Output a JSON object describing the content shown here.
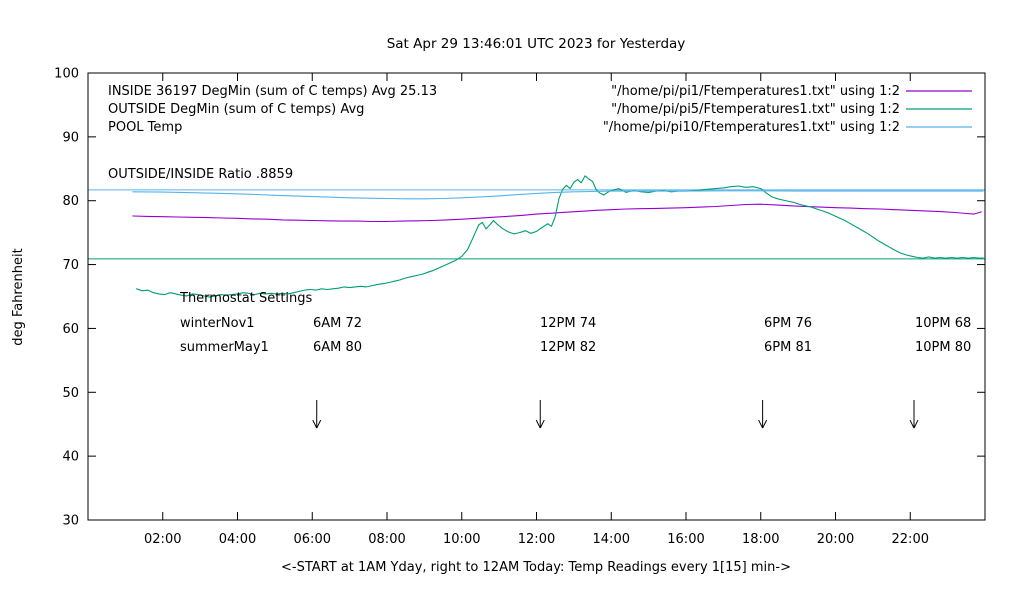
{
  "chart_data": {
    "type": "line",
    "title": "Sat Apr 29 13:46:01 UTC 2023 for Yesterday",
    "xlabel": "<-START at 1AM Yday, right to 12AM Today:  Temp Readings every 1[15] min->",
    "ylabel": "deg Fahrenheit",
    "xlim": [
      0,
      24
    ],
    "ylim": [
      30,
      100
    ],
    "grid": false,
    "legend_position": "top-inside",
    "x_tick_values": [
      2,
      4,
      6,
      8,
      10,
      12,
      14,
      16,
      18,
      20,
      22
    ],
    "x_tick_labels": [
      "02:00",
      "04:00",
      "06:00",
      "08:00",
      "10:00",
      "12:00",
      "14:00",
      "16:00",
      "18:00",
      "20:00",
      "22:00"
    ],
    "y_tick_values": [
      30,
      40,
      50,
      60,
      70,
      80,
      90,
      100
    ],
    "y_tick_labels": [
      "30",
      "40",
      "50",
      "60",
      "70",
      "80",
      "90",
      "100"
    ],
    "legend": [
      {
        "label": "INSIDE 36197 DegMin (sum of C temps) Avg 25.13",
        "file": "\"/home/pi/pi1/Ftemperatures1.txt\" using 1:2",
        "color": "#9400d3"
      },
      {
        "label": "OUTSIDE  DegMin (sum of C temps) Avg",
        "file": "\"/home/pi/pi5/Ftemperatures1.txt\" using 1:2",
        "color": "#009e73"
      },
      {
        "label": "POOL Temp",
        "file": "\"/home/pi/pi10/Ftemperatures1.txt\" using 1:2",
        "color": "#56b4e9"
      }
    ],
    "annotations": {
      "ratio": "OUTSIDE/INSIDE Ratio .8859",
      "thermostat_title": "Thermostat Settings",
      "thermostat_rows": [
        {
          "name": "winterNov1",
          "cols": [
            "6AM 72",
            "12PM 74",
            "6PM 76",
            "10PM 68"
          ]
        },
        {
          "name": "summerMay1",
          "cols": [
            "6AM 80",
            "12PM 82",
            "6PM 81",
            "10PM 80"
          ]
        }
      ]
    },
    "arrows": [
      {
        "t": 6.12,
        "y_from": 48.8,
        "y_to": 44.4
      },
      {
        "t": 12.1,
        "y_from": 48.8,
        "y_to": 44.4
      },
      {
        "t": 18.05,
        "y_from": 48.8,
        "y_to": 44.4
      },
      {
        "t": 22.1,
        "y_from": 48.8,
        "y_to": 44.4
      }
    ],
    "reference_lines": [
      {
        "name": "pool-setpoint-line",
        "value": 81.7,
        "color": "#56b4e9"
      },
      {
        "name": "outside-reference-line",
        "value": 70.9,
        "color": "#009e73"
      }
    ],
    "series": [
      {
        "name": "INSIDE",
        "color": "#9400d3",
        "points": [
          [
            1.2,
            77.6
          ],
          [
            1.6,
            77.55
          ],
          [
            2,
            77.5
          ],
          [
            2.4,
            77.45
          ],
          [
            2.8,
            77.4
          ],
          [
            3.2,
            77.35
          ],
          [
            3.6,
            77.3
          ],
          [
            4,
            77.25
          ],
          [
            4.4,
            77.15
          ],
          [
            4.8,
            77.1
          ],
          [
            5.2,
            77.0
          ],
          [
            5.6,
            76.95
          ],
          [
            6,
            76.9
          ],
          [
            6.4,
            76.85
          ],
          [
            6.8,
            76.8
          ],
          [
            7.2,
            76.8
          ],
          [
            7.6,
            76.75
          ],
          [
            8,
            76.75
          ],
          [
            8.4,
            76.8
          ],
          [
            8.8,
            76.85
          ],
          [
            9.2,
            76.9
          ],
          [
            9.6,
            77.0
          ],
          [
            10,
            77.1
          ],
          [
            10.4,
            77.25
          ],
          [
            10.8,
            77.4
          ],
          [
            11.2,
            77.55
          ],
          [
            11.6,
            77.7
          ],
          [
            12,
            77.9
          ],
          [
            12.4,
            78.05
          ],
          [
            12.8,
            78.2
          ],
          [
            13.2,
            78.35
          ],
          [
            13.6,
            78.5
          ],
          [
            14,
            78.6
          ],
          [
            14.4,
            78.7
          ],
          [
            14.8,
            78.75
          ],
          [
            15.2,
            78.8
          ],
          [
            15.6,
            78.85
          ],
          [
            16,
            78.9
          ],
          [
            16.4,
            79.0
          ],
          [
            16.8,
            79.1
          ],
          [
            17.2,
            79.25
          ],
          [
            17.6,
            79.4
          ],
          [
            18,
            79.45
          ],
          [
            18.4,
            79.35
          ],
          [
            18.8,
            79.2
          ],
          [
            19.2,
            79.1
          ],
          [
            19.6,
            79.0
          ],
          [
            20,
            78.9
          ],
          [
            20.4,
            78.85
          ],
          [
            20.8,
            78.75
          ],
          [
            21.2,
            78.7
          ],
          [
            21.6,
            78.6
          ],
          [
            22,
            78.5
          ],
          [
            22.4,
            78.4
          ],
          [
            22.8,
            78.3
          ],
          [
            23.2,
            78.15
          ],
          [
            23.5,
            78.0
          ],
          [
            23.7,
            77.9
          ],
          [
            23.9,
            78.25
          ]
        ]
      },
      {
        "name": "OUTSIDE",
        "color": "#009e73",
        "points": [
          [
            1.3,
            66.2
          ],
          [
            1.45,
            65.9
          ],
          [
            1.6,
            66.0
          ],
          [
            1.75,
            65.6
          ],
          [
            1.9,
            65.4
          ],
          [
            2.05,
            65.3
          ],
          [
            2.2,
            65.6
          ],
          [
            2.35,
            65.4
          ],
          [
            2.5,
            65.2
          ],
          [
            2.65,
            65.1
          ],
          [
            2.8,
            65.4
          ],
          [
            2.95,
            65.3
          ],
          [
            3.1,
            65.1
          ],
          [
            3.25,
            64.9
          ],
          [
            3.4,
            65.1
          ],
          [
            3.55,
            65.3
          ],
          [
            3.7,
            65.2
          ],
          [
            3.85,
            65.3
          ],
          [
            4,
            65.4
          ],
          [
            4.15,
            65.6
          ],
          [
            4.3,
            65.5
          ],
          [
            4.45,
            65.3
          ],
          [
            4.6,
            65.5
          ],
          [
            4.75,
            65.4
          ],
          [
            4.9,
            65.5
          ],
          [
            5.05,
            65.4
          ],
          [
            5.2,
            65.5
          ],
          [
            5.35,
            65.4
          ],
          [
            5.5,
            65.6
          ],
          [
            5.65,
            65.8
          ],
          [
            5.8,
            66.0
          ],
          [
            5.95,
            66.1
          ],
          [
            6.1,
            66.0
          ],
          [
            6.25,
            66.2
          ],
          [
            6.4,
            66.1
          ],
          [
            6.55,
            66.2
          ],
          [
            6.7,
            66.3
          ],
          [
            6.85,
            66.5
          ],
          [
            7,
            66.4
          ],
          [
            7.15,
            66.5
          ],
          [
            7.3,
            66.6
          ],
          [
            7.45,
            66.5
          ],
          [
            7.6,
            66.7
          ],
          [
            7.75,
            66.9
          ],
          [
            7.9,
            67.0
          ],
          [
            8.05,
            67.2
          ],
          [
            8.2,
            67.4
          ],
          [
            8.35,
            67.6
          ],
          [
            8.5,
            67.9
          ],
          [
            8.65,
            68.1
          ],
          [
            8.8,
            68.3
          ],
          [
            8.95,
            68.5
          ],
          [
            9.1,
            68.8
          ],
          [
            9.25,
            69.1
          ],
          [
            9.4,
            69.5
          ],
          [
            9.55,
            69.9
          ],
          [
            9.7,
            70.3
          ],
          [
            9.85,
            70.7
          ],
          [
            10,
            71.3
          ],
          [
            10.15,
            72.3
          ],
          [
            10.3,
            74.2
          ],
          [
            10.45,
            76.2
          ],
          [
            10.55,
            76.6
          ],
          [
            10.65,
            75.6
          ],
          [
            10.75,
            76.2
          ],
          [
            10.85,
            76.9
          ],
          [
            10.95,
            76.3
          ],
          [
            11.1,
            75.6
          ],
          [
            11.25,
            75.1
          ],
          [
            11.4,
            74.8
          ],
          [
            11.55,
            75.0
          ],
          [
            11.7,
            75.3
          ],
          [
            11.85,
            74.9
          ],
          [
            12,
            75.2
          ],
          [
            12.15,
            75.8
          ],
          [
            12.3,
            76.4
          ],
          [
            12.4,
            76.0
          ],
          [
            12.5,
            77.5
          ],
          [
            12.6,
            80.3
          ],
          [
            12.7,
            81.8
          ],
          [
            12.8,
            82.4
          ],
          [
            12.9,
            81.9
          ],
          [
            13,
            82.9
          ],
          [
            13.1,
            83.3
          ],
          [
            13.2,
            82.8
          ],
          [
            13.3,
            83.9
          ],
          [
            13.4,
            83.4
          ],
          [
            13.5,
            83.0
          ],
          [
            13.6,
            81.7
          ],
          [
            13.7,
            81.2
          ],
          [
            13.8,
            80.9
          ],
          [
            13.9,
            81.3
          ],
          [
            14,
            81.6
          ],
          [
            14.2,
            81.9
          ],
          [
            14.4,
            81.3
          ],
          [
            14.6,
            81.6
          ],
          [
            14.8,
            81.4
          ],
          [
            15,
            81.3
          ],
          [
            15.2,
            81.5
          ],
          [
            15.4,
            81.6
          ],
          [
            15.6,
            81.4
          ],
          [
            15.8,
            81.5
          ],
          [
            16,
            81.5
          ],
          [
            16.2,
            81.6
          ],
          [
            16.4,
            81.7
          ],
          [
            16.6,
            81.8
          ],
          [
            16.8,
            81.9
          ],
          [
            17,
            82.0
          ],
          [
            17.2,
            82.2
          ],
          [
            17.4,
            82.3
          ],
          [
            17.6,
            82.1
          ],
          [
            17.8,
            82.2
          ],
          [
            18,
            81.9
          ],
          [
            18.15,
            81.2
          ],
          [
            18.3,
            80.6
          ],
          [
            18.45,
            80.3
          ],
          [
            18.6,
            80.1
          ],
          [
            18.75,
            79.9
          ],
          [
            18.9,
            79.7
          ],
          [
            19.05,
            79.4
          ],
          [
            19.2,
            79.2
          ],
          [
            19.35,
            79.0
          ],
          [
            19.5,
            78.7
          ],
          [
            19.65,
            78.4
          ],
          [
            19.8,
            78.1
          ],
          [
            19.95,
            77.7
          ],
          [
            20.1,
            77.3
          ],
          [
            20.25,
            76.9
          ],
          [
            20.4,
            76.4
          ],
          [
            20.55,
            75.9
          ],
          [
            20.7,
            75.4
          ],
          [
            20.85,
            74.9
          ],
          [
            21,
            74.3
          ],
          [
            21.15,
            73.7
          ],
          [
            21.3,
            73.2
          ],
          [
            21.45,
            72.7
          ],
          [
            21.6,
            72.2
          ],
          [
            21.75,
            71.8
          ],
          [
            21.9,
            71.5
          ],
          [
            22.05,
            71.3
          ],
          [
            22.2,
            71.1
          ],
          [
            22.35,
            71.0
          ],
          [
            22.5,
            71.2
          ],
          [
            22.65,
            71.0
          ],
          [
            22.8,
            71.1
          ],
          [
            22.95,
            71.0
          ],
          [
            23.1,
            71.1
          ],
          [
            23.25,
            71.0
          ],
          [
            23.4,
            71.1
          ],
          [
            23.55,
            71.0
          ],
          [
            23.7,
            71.1
          ],
          [
            23.85,
            71.0
          ],
          [
            23.95,
            71.05
          ]
        ]
      },
      {
        "name": "POOL",
        "color": "#56b4e9",
        "points": [
          [
            1.2,
            81.4
          ],
          [
            2,
            81.35
          ],
          [
            2.8,
            81.25
          ],
          [
            3.6,
            81.15
          ],
          [
            4.4,
            81.0
          ],
          [
            5,
            80.85
          ],
          [
            5.5,
            80.75
          ],
          [
            6,
            80.65
          ],
          [
            6.5,
            80.55
          ],
          [
            7,
            80.45
          ],
          [
            7.5,
            80.4
          ],
          [
            8,
            80.35
          ],
          [
            8.5,
            80.3
          ],
          [
            9,
            80.3
          ],
          [
            9.5,
            80.35
          ],
          [
            10,
            80.45
          ],
          [
            10.5,
            80.6
          ],
          [
            11,
            80.75
          ],
          [
            11.5,
            80.95
          ],
          [
            12,
            81.15
          ],
          [
            12.5,
            81.3
          ],
          [
            13,
            81.4
          ],
          [
            13.5,
            81.45
          ],
          [
            14,
            81.5
          ],
          [
            15,
            81.5
          ],
          [
            16,
            81.5
          ],
          [
            17,
            81.55
          ],
          [
            18,
            81.55
          ],
          [
            19,
            81.5
          ],
          [
            20,
            81.5
          ],
          [
            21,
            81.5
          ],
          [
            22,
            81.5
          ],
          [
            23,
            81.5
          ],
          [
            23.95,
            81.5
          ]
        ]
      }
    ]
  }
}
